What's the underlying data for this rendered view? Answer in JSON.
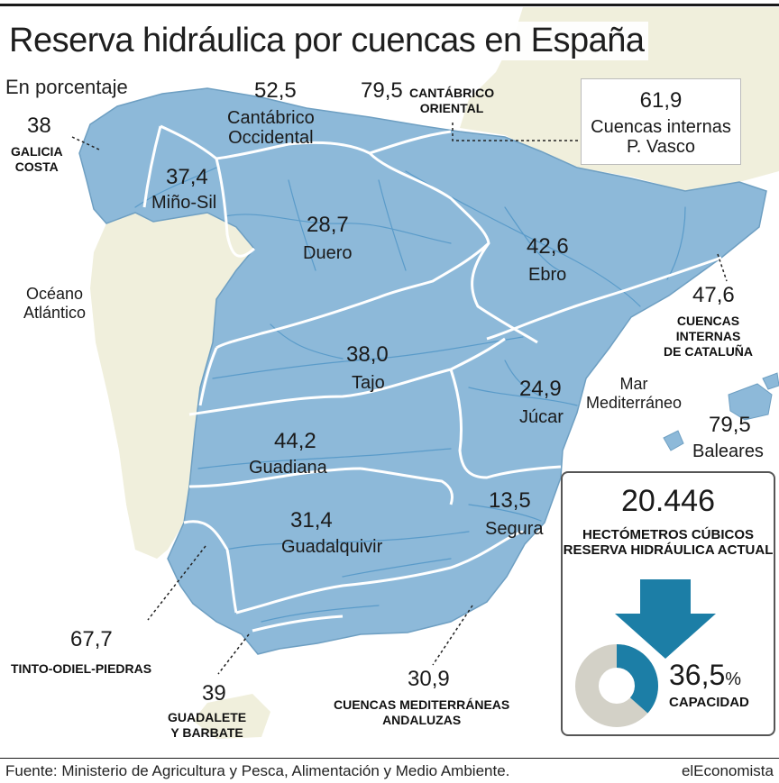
{
  "title": "Reserva hidráulica por cuencas en España",
  "subtitle": "En porcentaje",
  "seas": {
    "atlantic": [
      "Océano",
      "Atlántico"
    ],
    "mediterranean": [
      "Mar",
      "Mediterráneo"
    ]
  },
  "basins": [
    {
      "id": "galicia-costa",
      "name_lines": [
        "GALICIA",
        "COSTA"
      ],
      "value": "38"
    },
    {
      "id": "mino-sil",
      "name_lines": [
        "Miño-Sil"
      ],
      "value": "37,4"
    },
    {
      "id": "cantabrico-occidental",
      "name_lines": [
        "Cantábrico",
        "Occidental"
      ],
      "value": "52,5"
    },
    {
      "id": "cantabrico-oriental",
      "name_lines": [
        "CANTÁBRICO",
        "ORIENTAL"
      ],
      "value": "79,5"
    },
    {
      "id": "cuencas-internas-pvasco",
      "name_lines": [
        "Cuencas internas",
        "P. Vasco"
      ],
      "value": "61,9"
    },
    {
      "id": "duero",
      "name_lines": [
        "Duero"
      ],
      "value": "28,7"
    },
    {
      "id": "ebro",
      "name_lines": [
        "Ebro"
      ],
      "value": "42,6"
    },
    {
      "id": "cataluna",
      "name_lines": [
        "CUENCAS",
        "INTERNAS",
        "DE CATALUÑA"
      ],
      "value": "47,6"
    },
    {
      "id": "tajo",
      "name_lines": [
        "Tajo"
      ],
      "value": "38,0"
    },
    {
      "id": "jucar",
      "name_lines": [
        "Júcar"
      ],
      "value": "24,9"
    },
    {
      "id": "baleares",
      "name_lines": [
        "Baleares"
      ],
      "value": "79,5"
    },
    {
      "id": "guadiana",
      "name_lines": [
        "Guadiana"
      ],
      "value": "44,2"
    },
    {
      "id": "segura",
      "name_lines": [
        "Segura"
      ],
      "value": "13,5"
    },
    {
      "id": "guadalquivir",
      "name_lines": [
        "Guadalquivir"
      ],
      "value": "31,4"
    },
    {
      "id": "tinto-odiel-piedras",
      "name_lines": [
        "TINTO-ODIEL-PIEDRAS"
      ],
      "value": "67,7"
    },
    {
      "id": "guadalete-barbate",
      "name_lines": [
        "GUADALETE",
        "Y BARBATE"
      ],
      "value": "39"
    },
    {
      "id": "mediterraneas-andaluzas",
      "name_lines": [
        "CUENCAS MEDITERRÁNEAS",
        "ANDALUZAS"
      ],
      "value": "30,9"
    }
  ],
  "summary": {
    "total": "20.446",
    "total_label": "HECTÓMETROS CÚBICOS RESERVA HIDRÁULICA ACTUAL",
    "capacity_value": "36,5",
    "capacity_unit": "%",
    "capacity_label": "CAPACIDAD",
    "capacity_fraction": 0.365
  },
  "colors": {
    "water_basin": "#8db9d9",
    "land": "#f0efdc",
    "sea": "#ffffff",
    "accent": "#1c7ea6",
    "donut_rest": "#d3d1c7"
  },
  "footer": {
    "source": "Fuente: Ministerio de Agricultura y Pesca, Alimentación y Medio Ambiente.",
    "brand": "elEconomista"
  }
}
